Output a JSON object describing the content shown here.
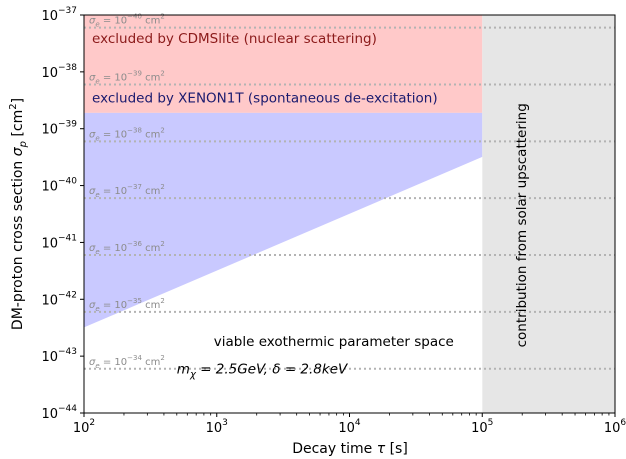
{
  "chart_data": {
    "type": "area",
    "xlabel_main": "Decay time ",
    "xlabel_sym": "τ",
    "xlabel_unit": " [s]",
    "ylabel_main": "DM-proton cross section ",
    "ylabel_sym": "σ",
    "ylabel_sub": "p",
    "ylabel_unit_pre": " [cm",
    "ylabel_unit_sup": "2",
    "ylabel_unit_post": "]",
    "x_scale": "log",
    "y_scale": "log",
    "xlim": [
      100,
      1000000
    ],
    "ylim": [
      1e-44,
      1e-37
    ],
    "x_ticks": [
      {
        "value": 100,
        "base": "10",
        "exp": "2"
      },
      {
        "value": 1000,
        "base": "10",
        "exp": "3"
      },
      {
        "value": 10000,
        "base": "10",
        "exp": "4"
      },
      {
        "value": 100000,
        "base": "10",
        "exp": "5"
      },
      {
        "value": 1000000,
        "base": "10",
        "exp": "6"
      }
    ],
    "y_ticks": [
      {
        "value": 1e-44,
        "base": "10",
        "exp": "−44"
      },
      {
        "value": 1e-43,
        "base": "10",
        "exp": "−43"
      },
      {
        "value": 1e-42,
        "base": "10",
        "exp": "−42"
      },
      {
        "value": 1e-41,
        "base": "10",
        "exp": "−41"
      },
      {
        "value": 1e-40,
        "base": "10",
        "exp": "−40"
      },
      {
        "value": 1e-39,
        "base": "10",
        "exp": "−39"
      },
      {
        "value": 1e-38,
        "base": "10",
        "exp": "−38"
      },
      {
        "value": 1e-37,
        "base": "10",
        "exp": "−37"
      }
    ],
    "regions": [
      {
        "name": "cdmslite-region",
        "label": "excluded by CDMSlite (nuclear scattering)",
        "color": "#ffc9c9",
        "polygon": [
          [
            100,
            1e-37
          ],
          [
            100000,
            1e-37
          ],
          [
            100000,
            1.9e-39
          ],
          [
            100,
            1.9e-39
          ]
        ],
        "label_at": [
          115,
          3.2e-38
        ],
        "text_color": "#8b1a1a"
      },
      {
        "name": "xenon1t-region",
        "label": "excluded by XENON1T (spontaneous de-excitation)",
        "color": "#c9c9ff",
        "polygon": [
          [
            100,
            1.9e-39
          ],
          [
            100000,
            1.9e-39
          ],
          [
            100000,
            3.2e-40
          ],
          [
            100,
            3.2e-43
          ]
        ],
        "label_at": [
          115,
          2.9e-39
        ],
        "text_color": "#1a1a6e"
      },
      {
        "name": "solar-region",
        "label": "contribution from solar upscattering",
        "color": "#e6e6e6",
        "polygon": [
          [
            100000,
            1e-37
          ],
          [
            1000000,
            1e-37
          ],
          [
            1000000,
            1e-44
          ],
          [
            100000,
            1e-44
          ]
        ],
        "label_at": [
          200000,
          2e-41
        ],
        "text_color": "#000000",
        "rotated": true
      }
    ],
    "sigma_e_lines": [
      {
        "y": 6e-38,
        "prefix": "σ",
        "sub": "e",
        "mid": " = 10",
        "exp": "−40",
        "unit": " cm",
        "unit_exp": "2"
      },
      {
        "y": 6e-39,
        "prefix": "σ",
        "sub": "e",
        "mid": " = 10",
        "exp": "−39",
        "unit": " cm",
        "unit_exp": "2"
      },
      {
        "y": 6e-40,
        "prefix": "σ",
        "sub": "e",
        "mid": " = 10",
        "exp": "−38",
        "unit": " cm",
        "unit_exp": "2"
      },
      {
        "y": 6e-41,
        "prefix": "σ",
        "sub": "e",
        "mid": " = 10",
        "exp": "−37",
        "unit": " cm",
        "unit_exp": "2"
      },
      {
        "y": 6e-42,
        "prefix": "σ",
        "sub": "e",
        "mid": " = 10",
        "exp": "−36",
        "unit": " cm",
        "unit_exp": "2"
      },
      {
        "y": 6e-43,
        "prefix": "σ",
        "sub": "e",
        "mid": " = 10",
        "exp": "−35",
        "unit": " cm",
        "unit_exp": "2"
      },
      {
        "y": 6e-44,
        "prefix": "σ",
        "sub": "e",
        "mid": " = 10",
        "exp": "−34",
        "unit": " cm",
        "unit_exp": "2"
      }
    ],
    "sigma_line_color": "#b3b3b3",
    "sigma_label_color": "#8c8c8c",
    "annotations": [
      {
        "name": "viable-label",
        "text": "viable exothermic parameter space",
        "at": [
          950,
          1.5e-43
        ]
      },
      {
        "name": "params-label",
        "m": "m",
        "m_sub": "χ",
        "m_val": " = 2.5GeV, ",
        "d": "δ",
        "d_val": " = 2.8keV",
        "at": [
          500,
          5e-44
        ]
      }
    ],
    "grid": false,
    "legend": "none"
  }
}
